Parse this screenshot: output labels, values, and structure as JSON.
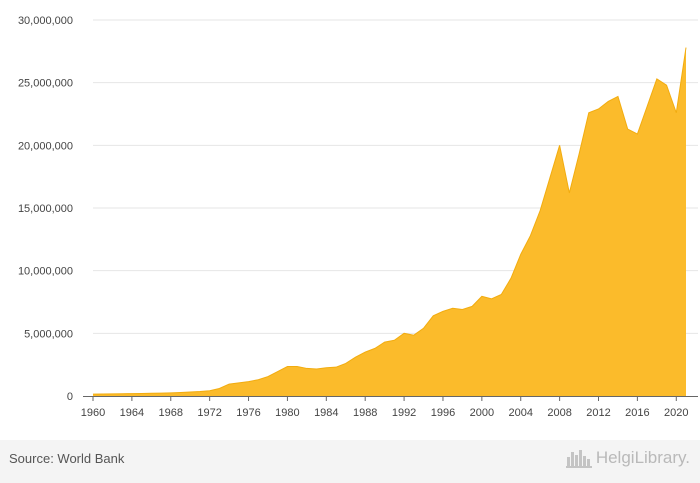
{
  "chart_data": {
    "type": "area",
    "x": [
      1960,
      1961,
      1962,
      1963,
      1964,
      1965,
      1966,
      1967,
      1968,
      1969,
      1970,
      1971,
      1972,
      1973,
      1974,
      1975,
      1976,
      1977,
      1978,
      1979,
      1980,
      1981,
      1982,
      1983,
      1984,
      1985,
      1986,
      1987,
      1988,
      1989,
      1990,
      1991,
      1992,
      1993,
      1994,
      1995,
      1996,
      1997,
      1998,
      1999,
      2000,
      2001,
      2002,
      2003,
      2004,
      2005,
      2006,
      2007,
      2008,
      2009,
      2010,
      2011,
      2012,
      2013,
      2014,
      2015,
      2016,
      2017,
      2018,
      2019,
      2020,
      2021
    ],
    "series": [
      {
        "values": [
          150000,
          160000,
          170000,
          180000,
          190000,
          200000,
          215000,
          230000,
          250000,
          280000,
          320000,
          360000,
          420000,
          600000,
          950000,
          1050000,
          1150000,
          1300000,
          1550000,
          1950000,
          2350000,
          2350000,
          2200000,
          2150000,
          2250000,
          2300000,
          2600000,
          3100000,
          3500000,
          3800000,
          4300000,
          4450000,
          5000000,
          4850000,
          5400000,
          6400000,
          6750000,
          7000000,
          6900000,
          7150000,
          7950000,
          7750000,
          8100000,
          9400000,
          11300000,
          12800000,
          14800000,
          17400000,
          20000000,
          16200000,
          19300000,
          22600000,
          22900000,
          23500000,
          23900000,
          21300000,
          20900000,
          23100000,
          25300000,
          24800000,
          22600000,
          27800000
        ]
      }
    ],
    "xticks": [
      "1960",
      "1964",
      "1968",
      "1972",
      "1976",
      "1980",
      "1984",
      "1988",
      "1992",
      "1996",
      "2000",
      "2004",
      "2008",
      "2012",
      "2016",
      "2020"
    ],
    "yticks": [
      "0",
      "5,000,000",
      "10,000,000",
      "15,000,000",
      "20,000,000",
      "25,000,000",
      "30,000,000"
    ],
    "ylim": [
      0,
      30000000
    ],
    "xlim": [
      1960,
      2021
    ],
    "grid": true,
    "color": "#fbbb2b"
  },
  "footer": {
    "source": "Source: World Bank",
    "brand": "HelgiLibrary."
  }
}
